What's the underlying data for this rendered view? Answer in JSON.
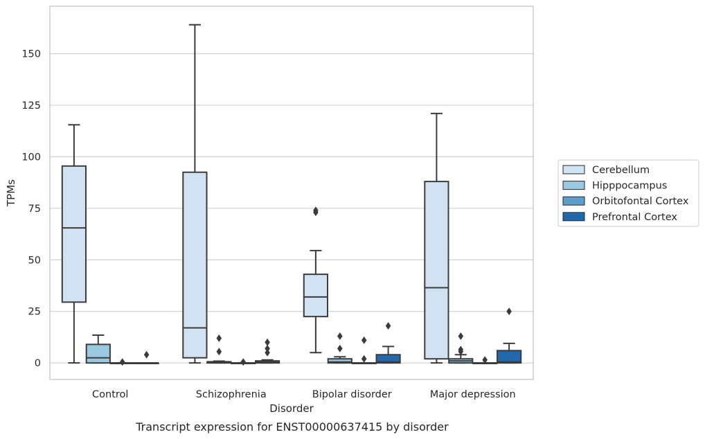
{
  "caption": "Transcript expression for ENST00000637415 by disorder",
  "chart_data": {
    "type": "box",
    "title": "",
    "xlabel": "Disorder",
    "ylabel": "TPMs",
    "ylim": [
      -8,
      173
    ],
    "yticks": [
      0,
      25,
      50,
      75,
      100,
      125,
      150
    ],
    "grid": true,
    "legend_position": "right",
    "categories": [
      "Control",
      "Schizophrenia",
      "Bipolar disorder",
      "Major depression"
    ],
    "series": [
      {
        "name": "Cerebellum",
        "color": "#d1e2f2",
        "boxes": [
          {
            "whislo": 0,
            "q1": 29.5,
            "med": 65.5,
            "q3": 95.5,
            "whishi": 115.5,
            "fliers": []
          },
          {
            "whislo": 0,
            "q1": 2.5,
            "med": 17,
            "q3": 92.5,
            "whishi": 164,
            "fliers": []
          },
          {
            "whislo": 5,
            "q1": 22.5,
            "med": 32,
            "q3": 43,
            "whishi": 54.5,
            "fliers": [
              73,
              74
            ]
          },
          {
            "whislo": 0,
            "q1": 2,
            "med": 36.5,
            "q3": 88,
            "whishi": 121,
            "fliers": []
          }
        ]
      },
      {
        "name": "Hipppocampus",
        "color": "#9ac8e0",
        "boxes": [
          {
            "whislo": 0,
            "q1": 0,
            "med": 2.5,
            "q3": 9,
            "whishi": 13.5,
            "fliers": []
          },
          {
            "whislo": 0,
            "q1": 0,
            "med": 0.3,
            "q3": 0.6,
            "whishi": 0.9,
            "fliers": [
              12,
              5.5
            ]
          },
          {
            "whislo": 0,
            "q1": 0,
            "med": 0.5,
            "q3": 2,
            "whishi": 3,
            "fliers": [
              13,
              7
            ]
          },
          {
            "whislo": 0,
            "q1": 0,
            "med": 1,
            "q3": 2,
            "whishi": 4,
            "fliers": [
              13,
              6.5,
              5.5
            ]
          }
        ]
      },
      {
        "name": "Orbitofontal Cortex",
        "color": "#5a9ecc",
        "boxes": [
          {
            "whislo": 0,
            "q1": 0,
            "med": 0,
            "q3": 0,
            "whishi": 0,
            "fliers": [
              0.5
            ]
          },
          {
            "whislo": 0,
            "q1": 0,
            "med": 0,
            "q3": 0,
            "whishi": 0,
            "fliers": [
              0.5
            ]
          },
          {
            "whislo": 0,
            "q1": 0,
            "med": 0,
            "q3": 0,
            "whishi": 0,
            "fliers": [
              11,
              2
            ]
          },
          {
            "whislo": 0,
            "q1": 0,
            "med": 0,
            "q3": 0,
            "whishi": 0,
            "fliers": [
              1.5
            ]
          }
        ]
      },
      {
        "name": "Prefrontal Cortex",
        "color": "#2268ad",
        "boxes": [
          {
            "whislo": 0,
            "q1": 0,
            "med": 0,
            "q3": 0,
            "whishi": 0,
            "fliers": [
              4
            ]
          },
          {
            "whislo": 0,
            "q1": 0,
            "med": 0.3,
            "q3": 1,
            "whishi": 1.5,
            "fliers": [
              10,
              7,
              5
            ]
          },
          {
            "whislo": 0,
            "q1": 0,
            "med": 0.5,
            "q3": 4,
            "whishi": 8,
            "fliers": [
              18
            ]
          },
          {
            "whislo": 0,
            "q1": 0,
            "med": 0.5,
            "q3": 6,
            "whishi": 9.5,
            "fliers": [
              25
            ]
          }
        ]
      }
    ]
  }
}
